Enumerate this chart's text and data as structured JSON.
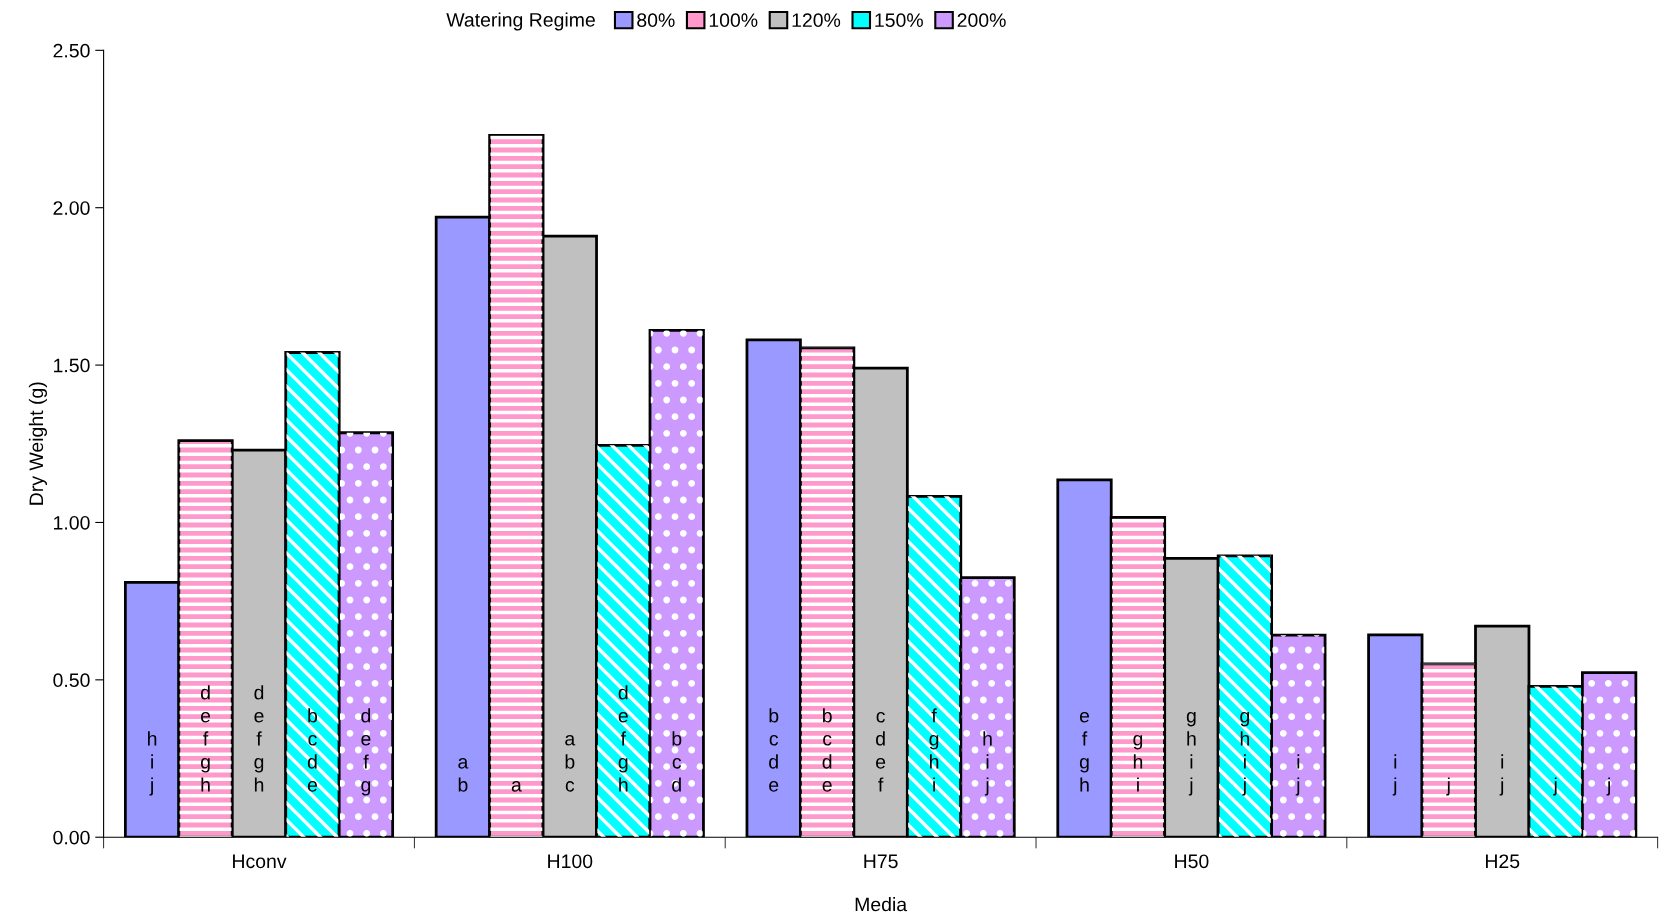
{
  "chart_data": {
    "type": "bar",
    "xlabel": "Media",
    "ylabel": "Dry Weight (g)",
    "legend_title": "Watering Regime",
    "legend": "top",
    "grid": false,
    "categories": [
      "Hconv",
      "H100",
      "H75",
      "H50",
      "H25"
    ],
    "ylim": [
      0,
      2.5
    ],
    "yticks": [
      {
        "value": 0,
        "label": "0.00"
      },
      {
        "value": 0.5,
        "label": "0.50"
      },
      {
        "value": 1,
        "label": "1.00"
      },
      {
        "value": 1.5,
        "label": "1.50"
      },
      {
        "value": 2,
        "label": "2.00"
      },
      {
        "value": 2.5,
        "label": "2.50"
      }
    ],
    "series": [
      {
        "name": "80%",
        "color": "#9999ff",
        "values": [
          0.81,
          1.97,
          1.58,
          1.135,
          0.643
        ],
        "value_labels": [
          "h\ni\nj",
          "a\nb",
          "b\nc\nd\ne",
          "e\nf\ng\nh",
          "i\nj"
        ]
      },
      {
        "name": "100%",
        "color": "#ff99cc",
        "values": [
          1.26,
          2.23,
          1.555,
          1.016,
          0.551
        ],
        "value_labels": [
          "d\ne\nf\ng\nh",
          "a",
          "b\nc\nd\ne",
          "g\nh\ni",
          "j"
        ]
      },
      {
        "name": "120%",
        "color": "#c0c0c0",
        "values": [
          1.23,
          1.91,
          1.49,
          0.886,
          0.671
        ],
        "value_labels": [
          "d\ne\nf\ng\nh",
          "a\nb\nc",
          "c\nd\ne\nf",
          "g\nh\ni\nj",
          "i\nj"
        ]
      },
      {
        "name": "150%",
        "color": "#00ffff",
        "values": [
          1.54,
          1.245,
          1.083,
          0.894,
          0.479
        ],
        "value_labels": [
          "b\nc\nd\ne",
          "d\ne\nf\ng\nh",
          "f\ng\nh\ni",
          "g\nh\ni\nj",
          "j"
        ]
      },
      {
        "name": "200%",
        "color": "#cc99ff",
        "values": [
          1.285,
          1.61,
          0.825,
          0.642,
          0.523
        ],
        "value_labels": [
          "d\ne\nf\ng",
          "b\nc\nd",
          "h\ni\nj",
          "i\nj",
          "j"
        ]
      }
    ]
  }
}
